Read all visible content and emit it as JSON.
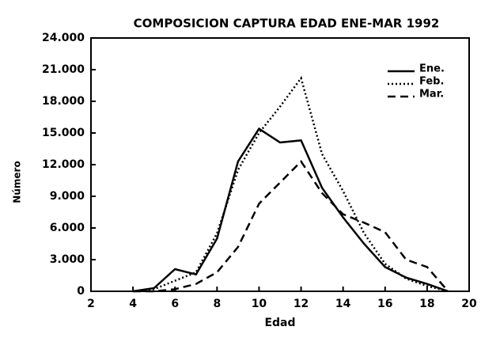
{
  "chart_data": {
    "type": "line",
    "title": "COMPOSICION CAPTURA EDAD ENE-MAR 1992",
    "xlabel": "Edad",
    "ylabel": "Número",
    "x": [
      4,
      5,
      6,
      7,
      8,
      9,
      10,
      11,
      12,
      13,
      14,
      15,
      16,
      17,
      18,
      19
    ],
    "series": [
      {
        "name": "Ene.",
        "color": "#000000",
        "dash": "solid",
        "values": [
          0,
          300,
          2100,
          1600,
          5000,
          12300,
          15400,
          14100,
          14300,
          9800,
          7000,
          4500,
          2300,
          1300,
          700,
          0
        ]
      },
      {
        "name": "Feb.",
        "color": "#000000",
        "dash": "dotted",
        "values": [
          0,
          200,
          1000,
          1800,
          5500,
          11500,
          15000,
          17500,
          20200,
          13000,
          9500,
          5500,
          2600,
          1200,
          500,
          0
        ]
      },
      {
        "name": "Mar.",
        "color": "#000000",
        "dash": "dashed",
        "values": [
          0,
          0,
          200,
          700,
          1800,
          4200,
          8300,
          10300,
          12300,
          9300,
          7300,
          6500,
          5600,
          3000,
          2300,
          0
        ]
      }
    ],
    "xlim": [
      2,
      20
    ],
    "xticks": [
      2,
      4,
      6,
      8,
      10,
      12,
      14,
      16,
      18,
      20
    ],
    "ylim": [
      0,
      24000
    ],
    "yticks": [
      0,
      {
        "value": 3000,
        "label": "3.000"
      },
      {
        "value": 6000,
        "label": "6.000"
      },
      {
        "value": 9000,
        "label": "9.000"
      },
      {
        "value": 12000,
        "label": "12.000"
      },
      {
        "value": 15000,
        "label": "15.000"
      },
      {
        "value": 18000,
        "label": "18.000"
      },
      {
        "value": 21000,
        "label": "21.000"
      },
      {
        "value": 24000,
        "label": "24.000"
      }
    ],
    "legend": "upper right"
  }
}
